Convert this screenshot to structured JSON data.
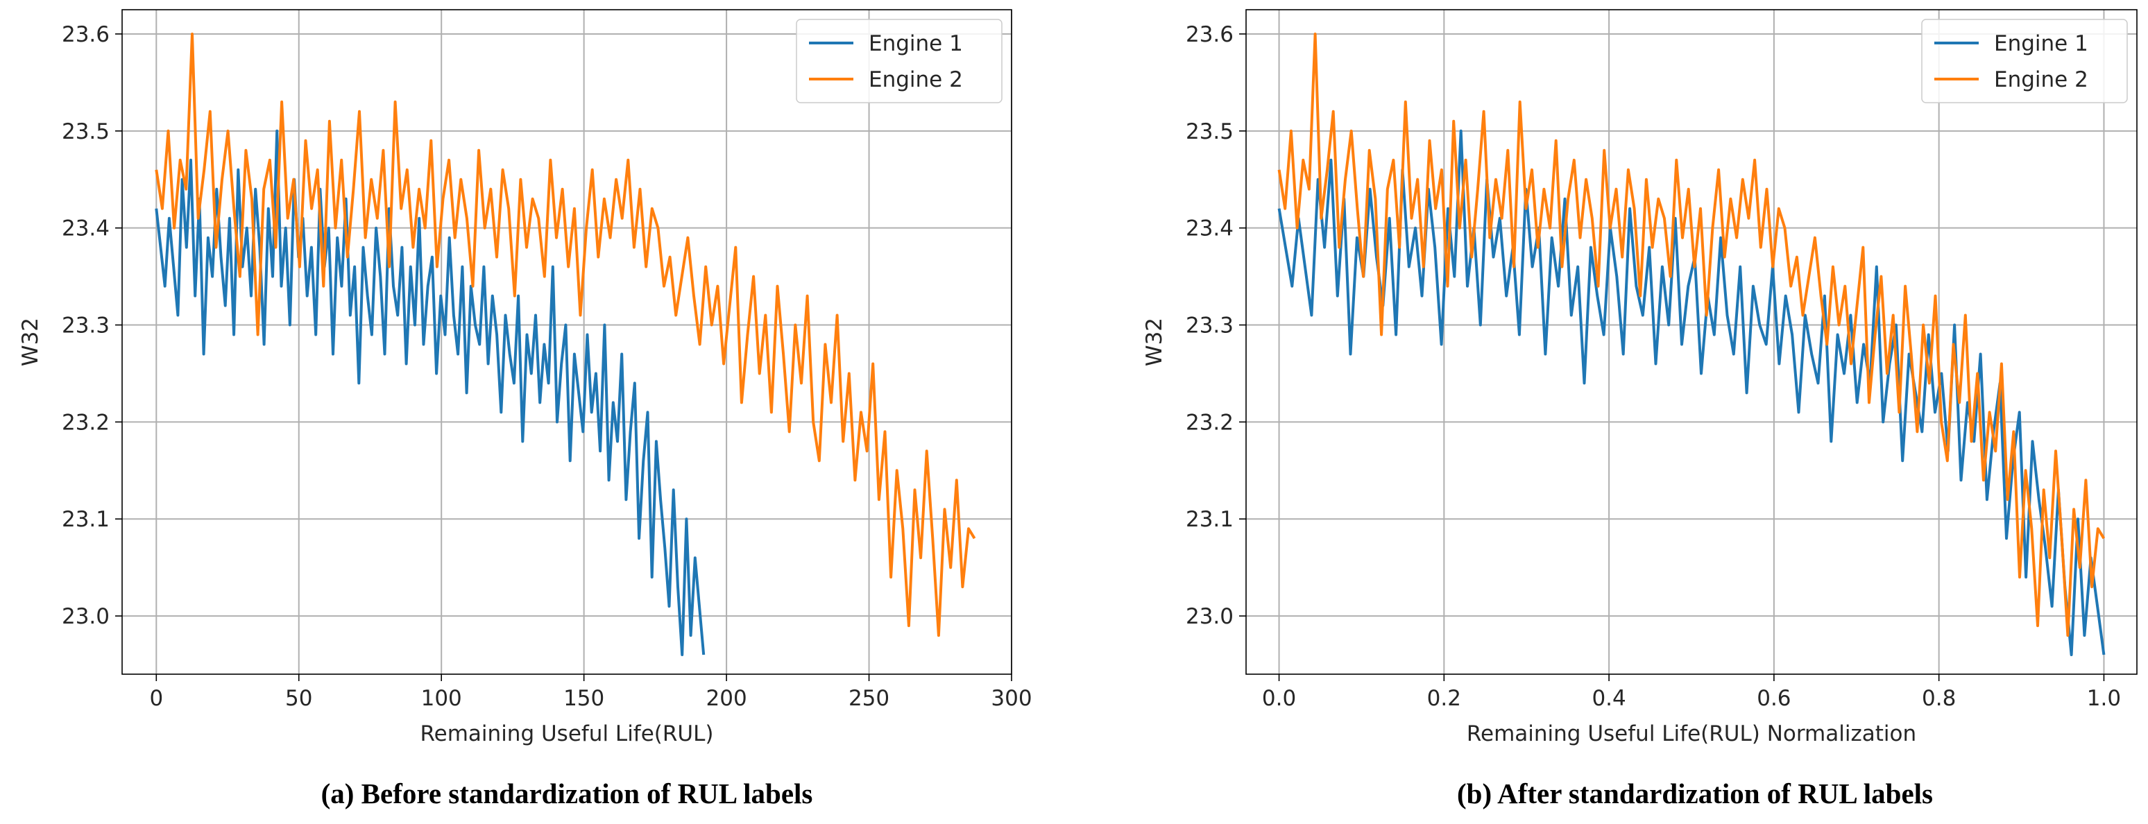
{
  "colors": {
    "engine1": "#1f77b4",
    "engine2": "#ff7f0e",
    "grid": "#b0b0b0",
    "axis": "#000000"
  },
  "panels": [
    {
      "caption": "(a) Before standardization of RUL labels"
    },
    {
      "caption": "(b) After standardization of RUL labels"
    }
  ],
  "chart_data": [
    {
      "type": "line",
      "title": "",
      "xlabel": "Remaining Useful Life(RUL)",
      "ylabel": "W32",
      "xlim": [
        -12,
        300
      ],
      "ylim": [
        22.94,
        23.625
      ],
      "xticks": [
        0,
        50,
        100,
        150,
        200,
        250,
        300
      ],
      "xtick_labels": [
        "0",
        "50",
        "100",
        "150",
        "200",
        "250",
        "300"
      ],
      "yticks": [
        23.0,
        23.1,
        23.2,
        23.3,
        23.4,
        23.5,
        23.6
      ],
      "ytick_labels": [
        "23.0",
        "23.1",
        "23.2",
        "23.3",
        "23.4",
        "23.5",
        "23.6"
      ],
      "grid": true,
      "legend": "top-right",
      "series": [
        {
          "name": "Engine 1",
          "x_start": 0,
          "x_end": 192,
          "values": [
            23.42,
            23.38,
            23.34,
            23.41,
            23.36,
            23.31,
            23.45,
            23.38,
            23.47,
            23.33,
            23.43,
            23.27,
            23.39,
            23.35,
            23.44,
            23.37,
            23.32,
            23.41,
            23.29,
            23.46,
            23.36,
            23.4,
            23.33,
            23.44,
            23.38,
            23.28,
            23.42,
            23.35,
            23.5,
            23.34,
            23.4,
            23.3,
            23.45,
            23.37,
            23.41,
            23.33,
            23.38,
            23.29,
            23.44,
            23.36,
            23.4,
            23.27,
            23.39,
            23.34,
            23.43,
            23.31,
            23.36,
            23.24,
            23.38,
            23.33,
            23.29,
            23.4,
            23.35,
            23.27,
            23.42,
            23.34,
            23.31,
            23.38,
            23.26,
            23.36,
            23.3,
            23.41,
            23.28,
            23.34,
            23.37,
            23.25,
            23.33,
            23.29,
            23.39,
            23.31,
            23.27,
            23.36,
            23.23,
            23.34,
            23.3,
            23.28,
            23.36,
            23.26,
            23.33,
            23.29,
            23.21,
            23.31,
            23.27,
            23.24,
            23.33,
            23.18,
            23.29,
            23.25,
            23.31,
            23.22,
            23.28,
            23.24,
            23.36,
            23.2,
            23.26,
            23.3,
            23.16,
            23.27,
            23.23,
            23.19,
            23.29,
            23.21,
            23.25,
            23.17,
            23.3,
            23.14,
            23.22,
            23.18,
            23.27,
            23.12,
            23.19,
            23.24,
            23.08,
            23.16,
            23.21,
            23.04,
            23.18,
            23.12,
            23.07,
            23.01,
            23.13,
            23.03,
            22.96,
            23.1,
            22.98,
            23.06,
            23.01,
            22.96
          ]
        },
        {
          "name": "Engine 2",
          "x_start": 0,
          "x_end": 287,
          "values": [
            23.46,
            23.42,
            23.5,
            23.4,
            23.47,
            23.44,
            23.6,
            23.41,
            23.46,
            23.52,
            23.38,
            23.45,
            23.5,
            23.42,
            23.35,
            23.48,
            23.43,
            23.29,
            23.44,
            23.47,
            23.38,
            23.53,
            23.41,
            23.45,
            23.36,
            23.49,
            23.42,
            23.46,
            23.34,
            23.51,
            23.4,
            23.47,
            23.37,
            23.44,
            23.52,
            23.39,
            23.45,
            23.41,
            23.48,
            23.36,
            23.53,
            23.42,
            23.46,
            23.38,
            23.44,
            23.4,
            23.49,
            23.36,
            23.43,
            23.47,
            23.39,
            23.45,
            23.41,
            23.34,
            23.48,
            23.4,
            23.44,
            23.37,
            23.46,
            23.42,
            23.33,
            23.45,
            23.38,
            23.43,
            23.41,
            23.35,
            23.47,
            23.39,
            23.44,
            23.36,
            23.42,
            23.31,
            23.4,
            23.46,
            23.37,
            23.43,
            23.39,
            23.45,
            23.41,
            23.47,
            23.38,
            23.44,
            23.36,
            23.42,
            23.4,
            23.34,
            23.37,
            23.31,
            23.35,
            23.39,
            23.33,
            23.28,
            23.36,
            23.3,
            23.34,
            23.26,
            23.32,
            23.38,
            23.22,
            23.29,
            23.35,
            23.25,
            23.31,
            23.21,
            23.34,
            23.27,
            23.19,
            23.3,
            23.24,
            23.33,
            23.2,
            23.16,
            23.28,
            23.22,
            23.31,
            23.18,
            23.25,
            23.14,
            23.21,
            23.17,
            23.26,
            23.12,
            23.19,
            23.04,
            23.15,
            23.09,
            22.99,
            23.13,
            23.06,
            23.17,
            23.08,
            22.98,
            23.11,
            23.05,
            23.14,
            23.03,
            23.09,
            23.08
          ]
        }
      ]
    },
    {
      "type": "line",
      "title": "",
      "xlabel": "Remaining Useful Life(RUL) Normalization",
      "ylabel": "W32",
      "xlim": [
        -0.04,
        1.04
      ],
      "ylim": [
        22.94,
        23.625
      ],
      "xticks": [
        0.0,
        0.2,
        0.4,
        0.6,
        0.8,
        1.0
      ],
      "xtick_labels": [
        "0.0",
        "0.2",
        "0.4",
        "0.6",
        "0.8",
        "1.0"
      ],
      "yticks": [
        23.0,
        23.1,
        23.2,
        23.3,
        23.4,
        23.5,
        23.6
      ],
      "ytick_labels": [
        "23.0",
        "23.1",
        "23.2",
        "23.3",
        "23.4",
        "23.5",
        "23.6"
      ],
      "grid": true,
      "legend": "top-right",
      "series": [
        {
          "name": "Engine 1",
          "x_start": 0.0,
          "x_end": 1.0,
          "same_values_as": "panel_a_engine1"
        },
        {
          "name": "Engine 2",
          "x_start": 0.0,
          "x_end": 1.0,
          "same_values_as": "panel_a_engine2"
        }
      ]
    }
  ]
}
